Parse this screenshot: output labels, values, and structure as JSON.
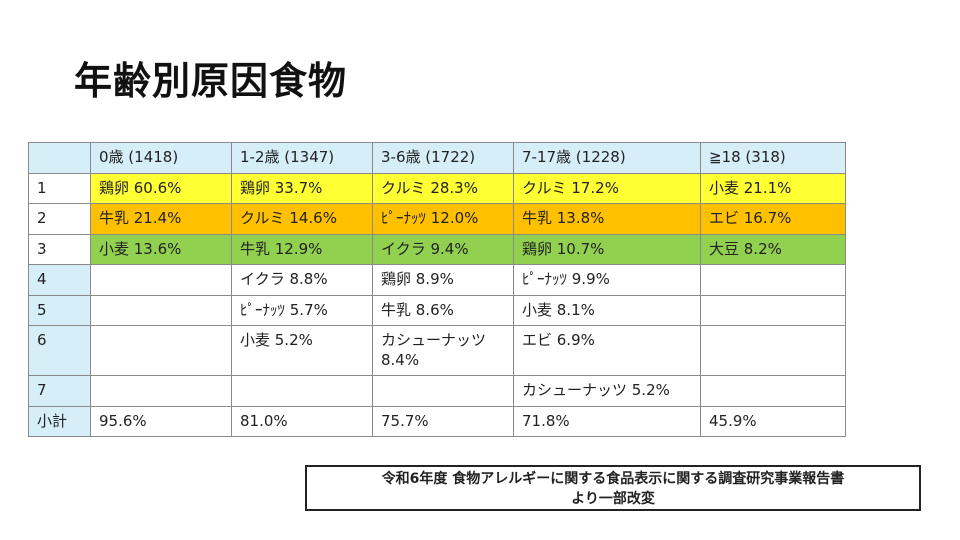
{
  "title": "年齢別原因食物",
  "table": {
    "headers": [
      "",
      "0歳 (1418)",
      "1-2歳 (1347)",
      "3-6歳 (1722)",
      "7-17歳 (1228)",
      "≧18 (318)"
    ],
    "rows": [
      {
        "rank": "1",
        "cells": [
          "鶏卵 60.6%",
          "鶏卵 33.7%",
          "クルミ 28.3%",
          "クルミ 17.2%",
          "小麦 21.1%"
        ]
      },
      {
        "rank": "2",
        "cells": [
          "牛乳 21.4%",
          "クルミ 14.6%",
          "ﾋﾟｰﾅｯﾂ 12.0%",
          "牛乳 13.8%",
          "エビ 16.7%"
        ]
      },
      {
        "rank": "3",
        "cells": [
          "小麦 13.6%",
          "牛乳 12.9%",
          "イクラ 9.4%",
          "鶏卵 10.7%",
          "大豆 8.2%"
        ]
      },
      {
        "rank": "4",
        "cells": [
          "",
          "イクラ 8.8%",
          "鶏卵 8.9%",
          "ﾋﾟｰﾅｯﾂ 9.9%",
          ""
        ]
      },
      {
        "rank": "5",
        "cells": [
          "",
          "ﾋﾟｰﾅｯﾂ 5.7%",
          "牛乳 8.6%",
          "小麦 8.1%",
          ""
        ]
      },
      {
        "rank": "6",
        "cells": [
          "",
          "小麦 5.2%",
          "カシューナッツ 8.4%",
          "エビ 6.9%",
          ""
        ]
      },
      {
        "rank": "7",
        "cells": [
          "",
          "",
          "",
          "カシューナッツ 5.2%",
          ""
        ]
      },
      {
        "rank": "小計",
        "cells": [
          "95.6%",
          "81.0%",
          "75.7%",
          "71.8%",
          "45.9%"
        ]
      }
    ]
  },
  "source": {
    "line1": "令和6年度 食物アレルギーに関する食品表示に関する調査研究事業報告書",
    "line2": "より一部改変"
  },
  "colors": {
    "header_bg": "#d6eef8",
    "rank1_bg": "#ffff33",
    "rank2_bg": "#ffc000",
    "rank3_bg": "#92d050"
  }
}
